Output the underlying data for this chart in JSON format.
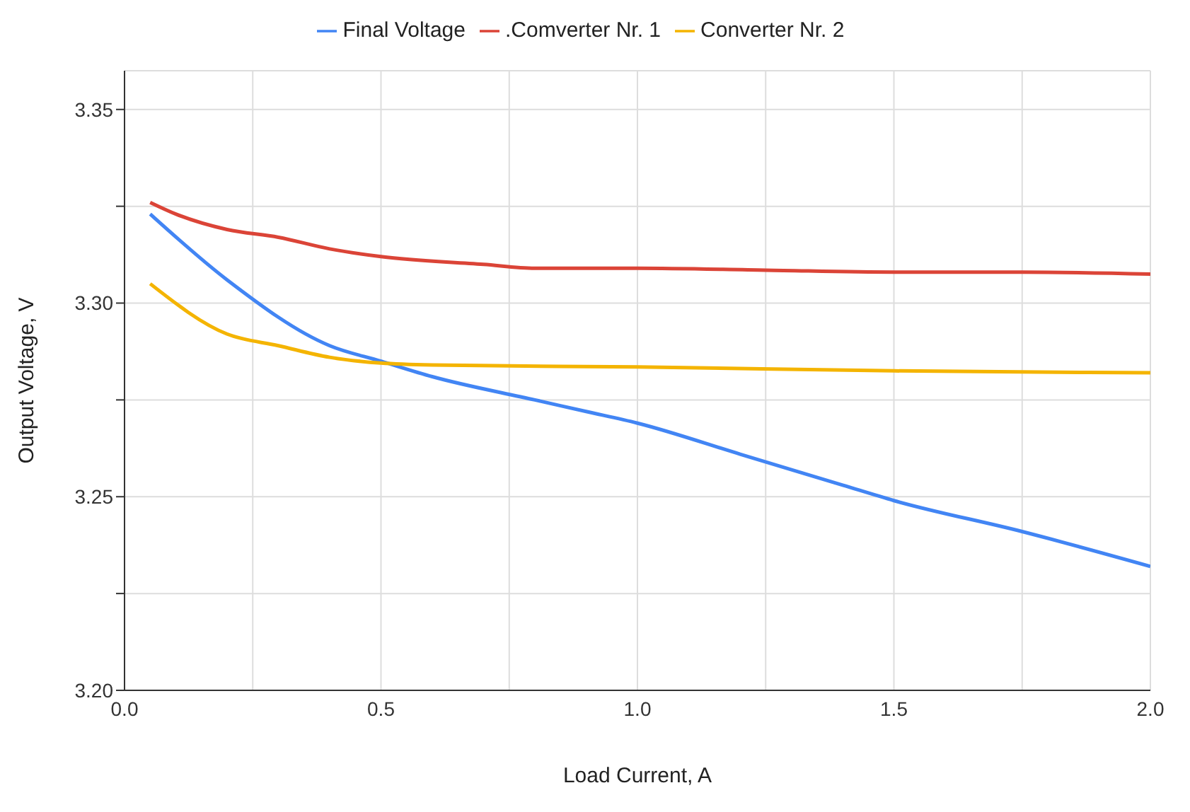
{
  "chart_data": {
    "type": "line",
    "xlabel": "Load Current, A",
    "ylabel": "Output Voltage, V",
    "xlim": [
      0,
      2
    ],
    "ylim": [
      3.2,
      3.36
    ],
    "xticks": [
      {
        "value": 0,
        "label": "0.0"
      },
      {
        "value": 0.25,
        "label": null
      },
      {
        "value": 0.5,
        "label": "0.5"
      },
      {
        "value": 0.75,
        "label": null
      },
      {
        "value": 1,
        "label": "1.0"
      },
      {
        "value": 1.25,
        "label": null
      },
      {
        "value": 1.5,
        "label": "1.5"
      },
      {
        "value": 1.75,
        "label": null
      },
      {
        "value": 2,
        "label": "2.0"
      }
    ],
    "yticks": [
      {
        "value": 3.2,
        "label": "3.20"
      },
      {
        "value": 3.225,
        "label": null
      },
      {
        "value": 3.25,
        "label": "3.25"
      },
      {
        "value": 3.275,
        "label": null
      },
      {
        "value": 3.3,
        "label": "3.30"
      },
      {
        "value": 3.325,
        "label": null
      },
      {
        "value": 3.35,
        "label": "3.35"
      }
    ],
    "grid": true,
    "legend": "top",
    "marker": "none",
    "line_style": "solid",
    "series": [
      {
        "name": "Final Voltage",
        "color": "#4285f4",
        "x": [
          0.05,
          0.2,
          0.4,
          0.5,
          0.6,
          0.8,
          0.9,
          1.0,
          1.2,
          1.4,
          1.5,
          1.75,
          2.0
        ],
        "values": [
          3.323,
          3.306,
          3.289,
          3.285,
          3.281,
          3.275,
          3.272,
          3.269,
          3.261,
          3.253,
          3.249,
          3.241,
          3.232
        ]
      },
      {
        "name": ".Comverter Nr. 1",
        "color": "#db4437",
        "x": [
          0.05,
          0.1,
          0.2,
          0.3,
          0.4,
          0.5,
          0.7,
          0.8,
          0.9,
          1.0,
          1.25,
          1.5,
          1.75,
          2.0
        ],
        "values": [
          3.326,
          3.323,
          3.319,
          3.317,
          3.314,
          3.312,
          3.31,
          3.309,
          3.309,
          3.309,
          3.3085,
          3.308,
          3.308,
          3.3075
        ]
      },
      {
        "name": "Converter Nr. 2",
        "color": "#f4b400",
        "x": [
          0.05,
          0.2,
          0.3,
          0.4,
          0.5,
          0.6,
          1.0,
          1.5,
          2.0
        ],
        "values": [
          3.305,
          3.292,
          3.289,
          3.286,
          3.2845,
          3.284,
          3.2835,
          3.2825,
          3.282
        ]
      }
    ]
  }
}
